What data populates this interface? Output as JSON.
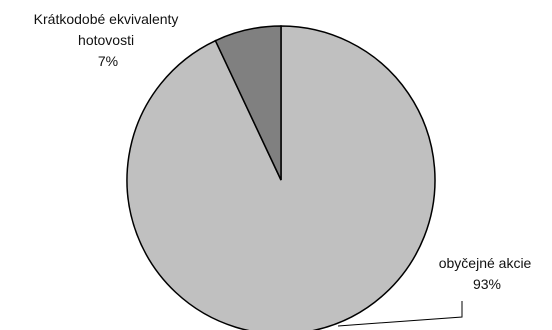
{
  "chart_data": {
    "type": "pie",
    "slices": [
      {
        "label_lines": [
          "Krátkodobé ekvivalenty",
          "hotovosti"
        ],
        "value": 7,
        "value_label": "7%",
        "color": "#808080"
      },
      {
        "label_lines": [
          "obyčejné akcie"
        ],
        "value": 93,
        "value_label": "93%",
        "color": "#c0c0c0"
      }
    ],
    "start": "12 o'clock",
    "direction": "clockwise",
    "legend": "none",
    "outline_color": "#000000"
  }
}
